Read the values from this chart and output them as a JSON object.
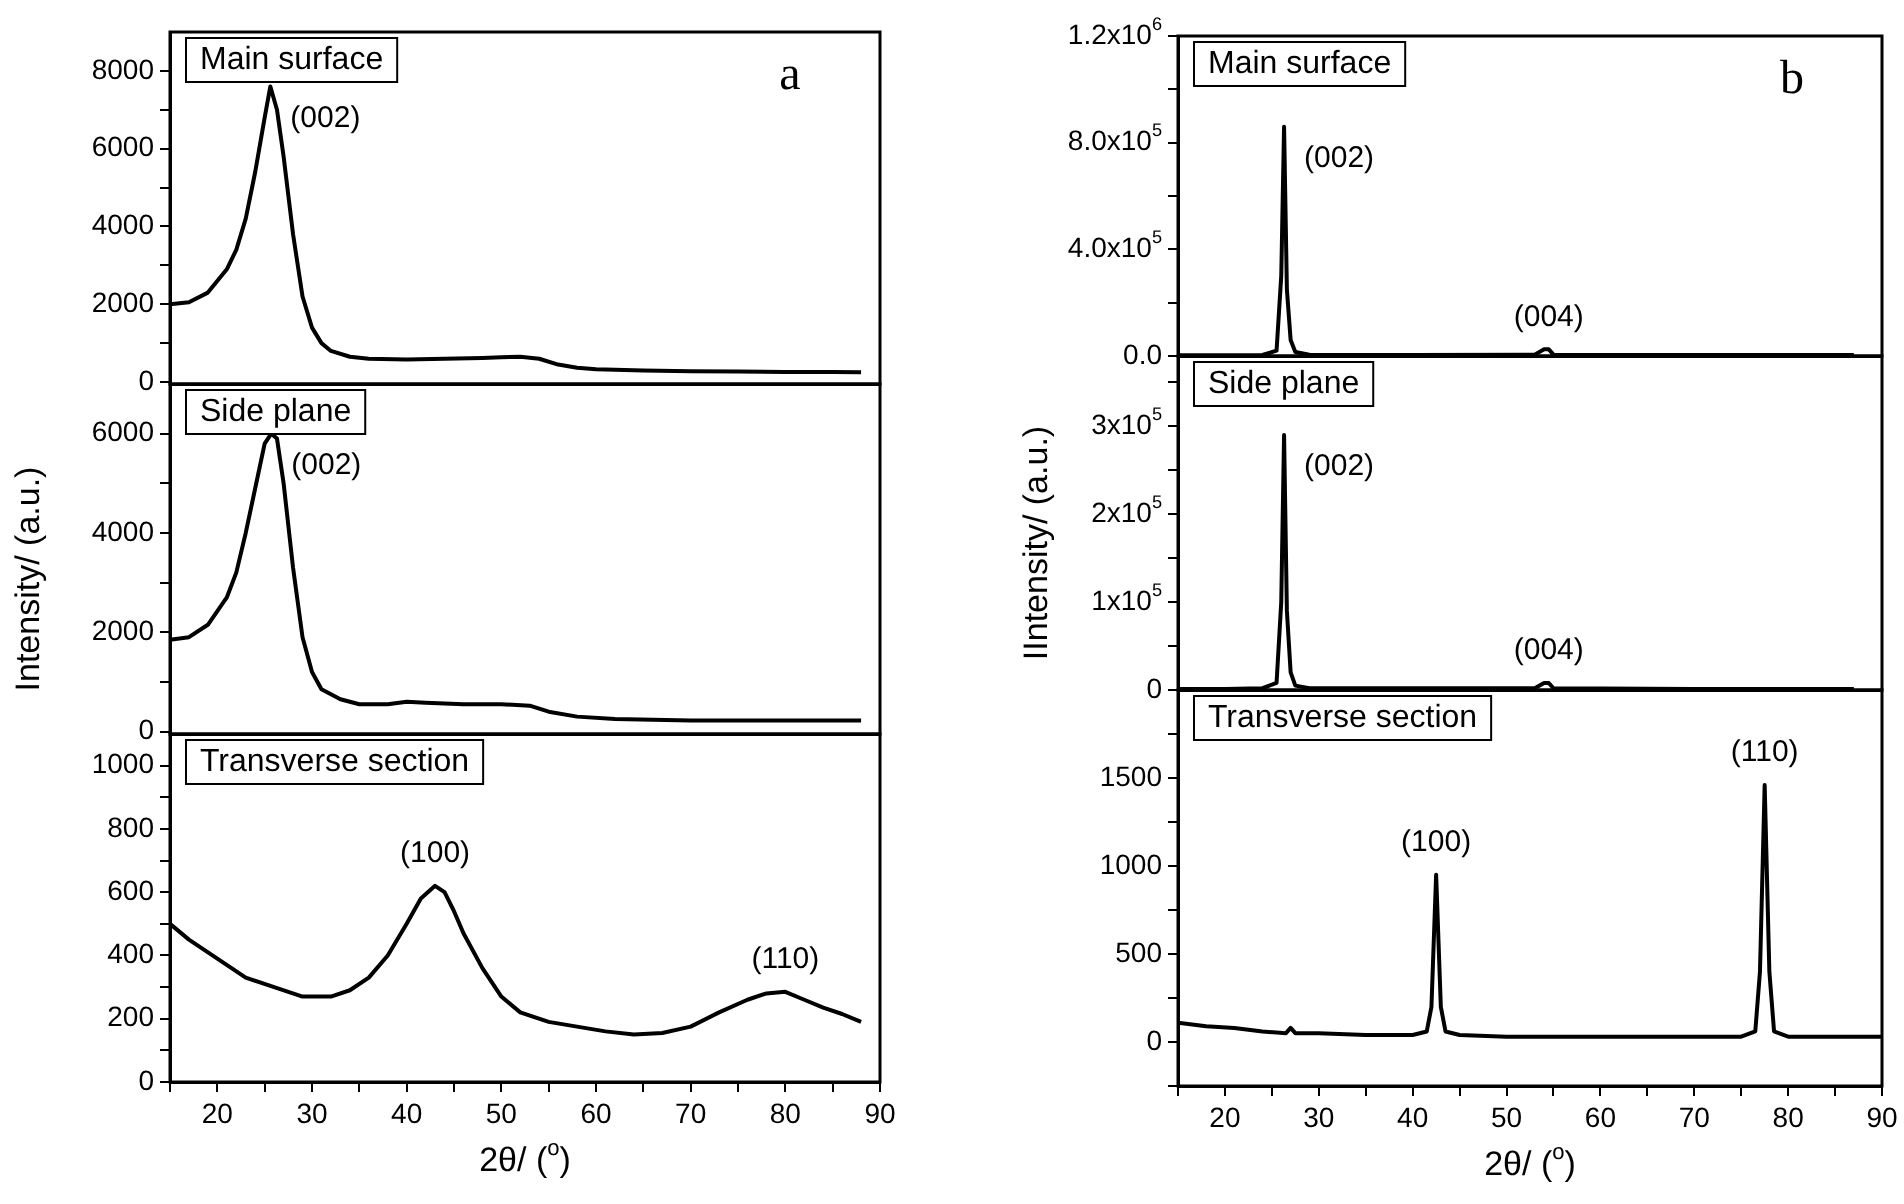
{
  "chart_data": [
    {
      "type": "line",
      "title": "Main surface",
      "annotations": [
        "a",
        {
          "text": "(002)",
          "x": 25.6,
          "y": 7600
        }
      ],
      "x": [
        15,
        17,
        19,
        21,
        22,
        23,
        24,
        25,
        25.6,
        26.3,
        27,
        28,
        29,
        30,
        31,
        32,
        34,
        36,
        40,
        44,
        48,
        50,
        52,
        54,
        56,
        58,
        60,
        65,
        70,
        75,
        80,
        85,
        88
      ],
      "values": [
        2000,
        2050,
        2300,
        2900,
        3400,
        4200,
        5400,
        6800,
        7600,
        7000,
        5800,
        3800,
        2200,
        1400,
        1000,
        800,
        650,
        600,
        580,
        600,
        620,
        640,
        650,
        600,
        450,
        370,
        330,
        300,
        280,
        270,
        260,
        260,
        250
      ],
      "color": "#000000",
      "xlim": [
        15,
        90
      ],
      "ylim": [
        -50,
        9000
      ],
      "tick_labels": "y",
      "yticks": [
        0,
        {
          "value": 1000,
          "label": null
        },
        2000,
        {
          "value": 3000,
          "label": null
        },
        4000,
        {
          "value": 5000,
          "label": null
        },
        6000,
        {
          "value": 7000,
          "label": null
        },
        8000
      ]
    },
    {
      "type": "line",
      "title": "Side plane",
      "ylabel": "Intensity/ (a.u.)",
      "annotations": [
        {
          "text": "(002)",
          "x": 25.7,
          "y": 6000
        }
      ],
      "x": [
        15,
        17,
        19,
        21,
        22,
        23,
        24,
        25,
        25.7,
        26.3,
        27,
        28,
        29,
        30,
        31,
        33,
        35,
        38,
        40,
        42,
        46,
        50,
        53,
        55,
        58,
        62,
        70,
        80,
        88
      ],
      "values": [
        1850,
        1900,
        2150,
        2700,
        3200,
        4000,
        4900,
        5800,
        6000,
        5900,
        5000,
        3300,
        1900,
        1200,
        850,
        650,
        550,
        550,
        600,
        580,
        550,
        550,
        520,
        400,
        300,
        250,
        220,
        220,
        220
      ],
      "color": "#000000",
      "xlim": [
        15,
        90
      ],
      "ylim": [
        -50,
        7000
      ],
      "tick_labels": "y",
      "yticks": [
        0,
        {
          "value": 1000,
          "label": null
        },
        2000,
        {
          "value": 3000,
          "label": null
        },
        4000,
        {
          "value": 5000,
          "label": null
        },
        6000
      ]
    },
    {
      "type": "line",
      "title": "Transverse section",
      "xlabel": "2θ/ ($^{o}$)",
      "annotations": [
        {
          "text": "(100)",
          "x": 43,
          "y": 620
        },
        {
          "text": "(110)",
          "x": 80,
          "y": 285
        }
      ],
      "x": [
        15,
        17,
        20,
        23,
        26,
        29,
        32,
        34,
        36,
        38,
        40,
        41.5,
        43,
        44,
        45,
        46,
        48,
        50,
        52,
        55,
        58,
        61,
        64,
        67,
        70,
        73,
        76,
        78,
        80,
        82,
        84,
        86,
        88
      ],
      "values": [
        500,
        450,
        390,
        330,
        300,
        270,
        270,
        290,
        330,
        400,
        500,
        580,
        620,
        600,
        540,
        470,
        360,
        270,
        220,
        190,
        175,
        160,
        150,
        155,
        175,
        220,
        260,
        280,
        285,
        260,
        235,
        215,
        190
      ],
      "color": "#000000",
      "xlim": [
        15,
        90
      ],
      "ylim": [
        0,
        1100
      ],
      "xticks": [
        {
          "value": 15,
          "label": null
        },
        20,
        {
          "value": 25,
          "label": null
        },
        30,
        {
          "value": 35,
          "label": null
        },
        40,
        {
          "value": 45,
          "label": null
        },
        50,
        {
          "value": 55,
          "label": null
        },
        60,
        {
          "value": 65,
          "label": null
        },
        70,
        {
          "value": 75,
          "label": null
        },
        80,
        {
          "value": 85,
          "label": null
        },
        90
      ],
      "yticks": [
        0,
        {
          "value": 100,
          "label": null
        },
        200,
        {
          "value": 300,
          "label": null
        },
        400,
        {
          "value": 500,
          "label": null
        },
        600,
        {
          "value": 700,
          "label": null
        },
        800,
        {
          "value": 900,
          "label": null
        },
        1000
      ]
    },
    {
      "type": "line",
      "title": "Main surface",
      "annotations": [
        "b",
        {
          "text": "(002)",
          "x": 26.3,
          "y": 860000
        },
        {
          "text": "(004)",
          "x": 54.5,
          "y": 25000
        }
      ],
      "x": [
        15,
        20,
        24,
        25.5,
        26,
        26.3,
        26.6,
        27,
        27.5,
        29,
        40,
        53,
        54,
        54.5,
        55,
        70,
        87
      ],
      "values": [
        3000,
        3000,
        4000,
        20000,
        300000,
        860000,
        250000,
        60000,
        15000,
        5000,
        4000,
        5000,
        25000,
        25000,
        5000,
        4000,
        4000
      ],
      "color": "#000000",
      "xlim": [
        15,
        90
      ],
      "ylim": [
        0,
        1200000
      ],
      "tick_labels": "y",
      "yticks": [
        {
          "value": 0,
          "label": "0.0"
        },
        {
          "value": 200000,
          "label": null
        },
        {
          "value": 400000,
          "label": "4.0x10$^{5}$"
        },
        {
          "value": 600000,
          "label": null
        },
        {
          "value": 800000,
          "label": "8.0x10$^{5}$"
        },
        {
          "value": 1000000,
          "label": null
        },
        {
          "value": 1200000,
          "label": "1.2x10$^{6}$"
        }
      ]
    },
    {
      "type": "line",
      "title": "Side plane",
      "ylabel": "IIntensity/ (a.u.)",
      "annotations": [
        {
          "text": "(002)",
          "x": 26.3,
          "y": 290000
        },
        {
          "text": "(004)",
          "x": 54.5,
          "y": 8000
        }
      ],
      "x": [
        15,
        20,
        24,
        25.5,
        26,
        26.3,
        26.6,
        27,
        27.5,
        29,
        40,
        53,
        54,
        54.5,
        55,
        70,
        87
      ],
      "values": [
        1000,
        1000,
        2000,
        8000,
        100000,
        290000,
        90000,
        20000,
        5000,
        2000,
        2000,
        2000,
        8000,
        8000,
        2000,
        1000,
        1000
      ],
      "color": "#000000",
      "xlim": [
        15,
        90
      ],
      "ylim": [
        0,
        380000
      ],
      "tick_labels": "y",
      "yticks": [
        {
          "value": 0,
          "label": "0"
        },
        {
          "value": 50000,
          "label": null
        },
        {
          "value": 100000,
          "label": "1x10$^{5}$"
        },
        {
          "value": 150000,
          "label": null
        },
        {
          "value": 200000,
          "label": "2x10$^{5}$"
        },
        {
          "value": 250000,
          "label": null
        },
        {
          "value": 300000,
          "label": "3x10$^{5}$"
        },
        {
          "value": 350000,
          "label": null
        }
      ]
    },
    {
      "type": "line",
      "title": "Transverse section",
      "xlabel": "2θ/ ($^{o}$)",
      "annotations": [
        {
          "text": "(100)",
          "x": 42.5,
          "y": 950
        },
        {
          "text": "(110)",
          "x": 77.5,
          "y": 1460
        }
      ],
      "x": [
        15,
        18,
        21,
        24,
        26.5,
        27,
        27.5,
        30,
        35,
        40,
        41.5,
        42,
        42.5,
        43,
        43.5,
        45,
        50,
        60,
        70,
        75,
        76.5,
        77,
        77.5,
        78,
        78.5,
        80,
        90
      ],
      "values": [
        110,
        90,
        80,
        60,
        50,
        80,
        50,
        50,
        40,
        40,
        60,
        200,
        950,
        200,
        60,
        40,
        30,
        30,
        30,
        30,
        60,
        400,
        1460,
        400,
        60,
        30,
        30
      ],
      "color": "#000000",
      "xlim": [
        15,
        90
      ],
      "ylim": [
        -250,
        2000
      ],
      "xticks": [
        {
          "value": 15,
          "label": null
        },
        20,
        {
          "value": 25,
          "label": null
        },
        30,
        {
          "value": 35,
          "label": null
        },
        40,
        {
          "value": 45,
          "label": null
        },
        50,
        {
          "value": 55,
          "label": null
        },
        60,
        {
          "value": 65,
          "label": null
        },
        70,
        {
          "value": 75,
          "label": null
        },
        80,
        {
          "value": 85,
          "label": null
        },
        90
      ],
      "yticks": [
        {
          "value": -250,
          "label": null
        },
        0,
        {
          "value": 250,
          "label": null
        },
        500,
        {
          "value": 750,
          "label": null
        },
        1000,
        {
          "value": 1250,
          "label": null
        },
        1500,
        {
          "value": 1750,
          "label": null
        }
      ]
    }
  ]
}
